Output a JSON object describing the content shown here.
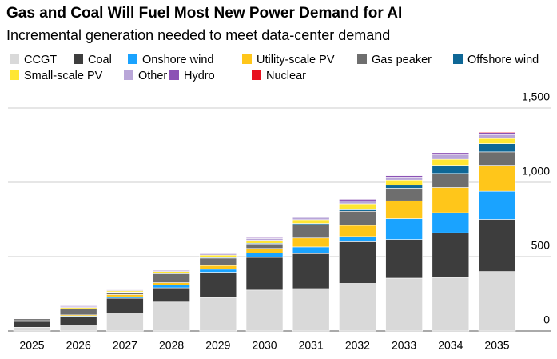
{
  "chart_data": {
    "type": "stacked_bar",
    "title": "Gas and Coal Will Fuel Most New Power Demand for AI",
    "subtitle": "Incremental generation needed to meet data-center demand",
    "categories": [
      "2025",
      "2026",
      "2027",
      "2028",
      "2029",
      "2030",
      "2031",
      "2032",
      "2033",
      "2034",
      "2035"
    ],
    "series": [
      {
        "name": "CCGT",
        "color": "#d9d9d9",
        "values": [
          25,
          40,
          120,
          195,
          225,
          275,
          285,
          320,
          355,
          360,
          400
        ]
      },
      {
        "name": "Coal",
        "color": "#3d3d3d",
        "values": [
          40,
          55,
          100,
          95,
          170,
          220,
          235,
          280,
          260,
          300,
          350
        ]
      },
      {
        "name": "Onshore wind",
        "color": "#1aa3ff",
        "values": [
          3,
          5,
          10,
          20,
          20,
          30,
          45,
          35,
          140,
          135,
          190
        ]
      },
      {
        "name": "Utility-scale PV",
        "color": "#ffc61a",
        "values": [
          2,
          8,
          15,
          15,
          25,
          30,
          60,
          75,
          120,
          170,
          175
        ]
      },
      {
        "name": "Gas peaker",
        "color": "#6e6e6e",
        "values": [
          12,
          40,
          15,
          60,
          50,
          30,
          90,
          95,
          85,
          95,
          90
        ]
      },
      {
        "name": "Offshore wind",
        "color": "#0e6796",
        "values": [
          0,
          2,
          3,
          5,
          5,
          5,
          8,
          10,
          20,
          55,
          55
        ]
      },
      {
        "name": "Small-scale PV",
        "color": "#ffe633",
        "values": [
          2,
          8,
          8,
          10,
          15,
          20,
          25,
          40,
          35,
          40,
          35
        ]
      },
      {
        "name": "Other",
        "color": "#b9a6d8",
        "values": [
          2,
          8,
          6,
          8,
          10,
          12,
          15,
          20,
          20,
          30,
          25
        ]
      },
      {
        "name": "Hydro",
        "color": "#8c52b5",
        "values": [
          1,
          4,
          3,
          3,
          5,
          5,
          5,
          10,
          10,
          15,
          15
        ]
      },
      {
        "name": "Nuclear",
        "color": "#e8101f",
        "values": [
          0,
          0,
          0,
          0,
          0,
          0,
          0,
          0,
          0,
          0,
          5
        ]
      }
    ],
    "ylim": [
      0,
      1500
    ],
    "yticks": [
      0,
      500,
      {
        "value": 1000,
        "label": "1,000"
      },
      {
        "value": 1500,
        "label": "1,500"
      }
    ],
    "grid": true
  }
}
